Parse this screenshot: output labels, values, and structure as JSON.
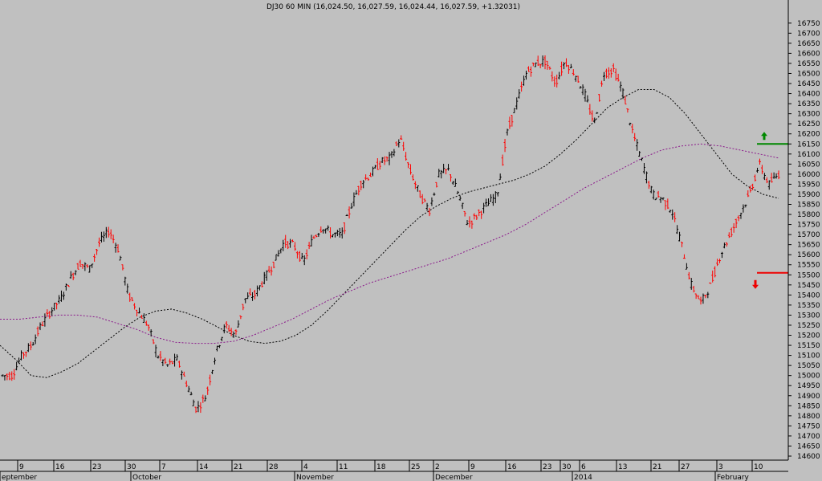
{
  "chart_data": {
    "type": "candlestick",
    "title": "DJ30 60 MIN (16,024.50, 16,027.59, 16,024.44, 16,027.59, +1.32031)",
    "y_axis": {
      "side": "right",
      "ylim": [
        14560,
        16800
      ],
      "ticks": [
        14600,
        14650,
        14700,
        14750,
        14800,
        14850,
        14900,
        14950,
        15000,
        15050,
        15100,
        15150,
        15200,
        15250,
        15300,
        15350,
        15400,
        15450,
        15500,
        15550,
        15600,
        15650,
        15700,
        15750,
        15800,
        15850,
        15900,
        15950,
        16000,
        16050,
        16100,
        16150,
        16200,
        16250,
        16300,
        16350,
        16400,
        16450,
        16500,
        16550,
        16600,
        16650,
        16700,
        16750
      ]
    },
    "x_axis": {
      "day_labels": [
        "9",
        "16",
        "23",
        "30",
        "7",
        "14",
        "21",
        "28",
        "4",
        "11",
        "18",
        "25",
        "2",
        "9",
        "16",
        "23",
        "30",
        "6",
        "13",
        "21",
        "27",
        "3",
        "10"
      ],
      "month_labels": [
        "eptember",
        "October",
        "November",
        "December",
        "2014",
        "February"
      ]
    },
    "price_path": [
      [
        15000,
        14950
      ],
      [
        15000,
        14880
      ],
      [
        15100,
        14980
      ],
      [
        15150,
        15080
      ],
      [
        15250,
        15150
      ],
      [
        15320,
        15230
      ],
      [
        15380,
        15300
      ],
      [
        15480,
        15400
      ],
      [
        15560,
        15520
      ],
      [
        15530,
        15520
      ],
      [
        15660,
        15560
      ],
      [
        15720,
        15620
      ],
      [
        15620,
        15540
      ],
      [
        15400,
        15330
      ],
      [
        15320,
        15260
      ],
      [
        15250,
        15160
      ],
      [
        15100,
        15150
      ],
      [
        15050,
        15060
      ],
      [
        15080,
        15020
      ],
      [
        14960,
        14880
      ],
      [
        14830,
        14760
      ],
      [
        14900,
        15000
      ],
      [
        15110,
        15170
      ],
      [
        15250,
        15250
      ],
      [
        15200,
        15330
      ],
      [
        15380,
        15400
      ],
      [
        15400,
        15460
      ],
      [
        15480,
        15520
      ],
      [
        15560,
        15600
      ],
      [
        15660,
        15700
      ],
      [
        15650,
        15600
      ],
      [
        15560,
        15580
      ],
      [
        15680,
        15720
      ],
      [
        15740,
        15760
      ],
      [
        15700,
        15640
      ],
      [
        15700,
        15800
      ],
      [
        15850,
        15900
      ],
      [
        15960,
        16000
      ],
      [
        16000,
        15960
      ],
      [
        16060,
        16100
      ],
      [
        16080,
        16060
      ],
      [
        16180,
        16100
      ],
      [
        16020,
        16000
      ],
      [
        15900,
        15850
      ],
      [
        15820,
        15900
      ],
      [
        16000,
        16060
      ],
      [
        16020,
        15980
      ],
      [
        15900,
        15800
      ],
      [
        15750,
        15720
      ],
      [
        15800,
        15900
      ],
      [
        15850,
        15800
      ],
      [
        15900,
        15950
      ],
      [
        16200,
        16300
      ],
      [
        16350,
        16430
      ],
      [
        16500,
        16480
      ],
      [
        16550,
        16600
      ],
      [
        16560,
        16520
      ],
      [
        16450,
        16500
      ],
      [
        16560,
        16480
      ],
      [
        16500,
        16450
      ],
      [
        16400,
        16320
      ],
      [
        16250,
        16450
      ],
      [
        16500,
        16480
      ],
      [
        16520,
        16450
      ],
      [
        16400,
        16360
      ],
      [
        16200,
        16140
      ],
      [
        16050,
        15950
      ],
      [
        15900,
        15850
      ],
      [
        15880,
        15830
      ],
      [
        15820,
        15750
      ],
      [
        15650,
        15600
      ],
      [
        15450,
        15380
      ],
      [
        15360,
        15400
      ],
      [
        15450,
        15450
      ],
      [
        15600,
        15650
      ],
      [
        15700,
        15750
      ],
      [
        15800,
        15850
      ],
      [
        15900,
        15980
      ],
      [
        16050,
        16000
      ],
      [
        15950,
        15960
      ],
      [
        16000,
        16030
      ]
    ],
    "series": [
      {
        "type": "ma",
        "color": "#000000",
        "dash": true,
        "values": [
          15150,
          15080,
          15000,
          14990,
          15020,
          15060,
          15120,
          15180,
          15240,
          15290,
          15320,
          15330,
          15310,
          15280,
          15240,
          15200,
          15170,
          15160,
          15170,
          15200,
          15250,
          15320,
          15400,
          15480,
          15560,
          15640,
          15720,
          15790,
          15840,
          15880,
          15910,
          15930,
          15950,
          15970,
          16000,
          16040,
          16100,
          16170,
          16250,
          16330,
          16380,
          16420,
          16420,
          16380,
          16300,
          16200,
          16100,
          16000,
          15940,
          15900,
          15880
        ]
      },
      {
        "type": "ma",
        "color": "#8b1a8b",
        "dash": true,
        "values": [
          15280,
          15280,
          15290,
          15300,
          15300,
          15290,
          15260,
          15230,
          15190,
          15165,
          15160,
          15160,
          15170,
          15200,
          15240,
          15280,
          15330,
          15380,
          15420,
          15460,
          15490,
          15520,
          15550,
          15580,
          15620,
          15660,
          15700,
          15750,
          15810,
          15870,
          15930,
          15980,
          16030,
          16080,
          16120,
          16140,
          16150,
          16140,
          16120,
          16100,
          16080
        ]
      }
    ],
    "annotations": [
      {
        "type": "hline",
        "color": "#008800",
        "value": 16150,
        "arrow": "up"
      },
      {
        "type": "hline",
        "color": "#ee0000",
        "value": 15510,
        "arrow": "down"
      }
    ],
    "colors": {
      "background": "#c0c0c0",
      "up_bar": "#000000",
      "down_bar": "#ff0000",
      "axis": "#000000"
    }
  }
}
